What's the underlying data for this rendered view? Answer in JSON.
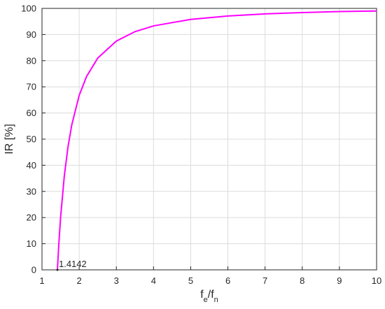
{
  "chart_data": {
    "type": "line",
    "ylabel": "IR [%]",
    "xlabel_parts": [
      "f",
      "e",
      "/f",
      "n"
    ],
    "x": [
      1.4142,
      1.45,
      1.5,
      1.6,
      1.7,
      1.8,
      2,
      2.2,
      2.5,
      3,
      3.5,
      4,
      5,
      6,
      7,
      8,
      9,
      10
    ],
    "series": [
      {
        "color": "#ff00ff",
        "values": [
          0,
          9.3,
          20,
          35.9,
          47.1,
          55.4,
          66.7,
          74.0,
          81.0,
          87.5,
          91.1,
          93.3,
          95.8,
          97.1,
          97.9,
          98.4,
          98.8,
          99.0
        ]
      }
    ],
    "annotation": {
      "x": 1.4142,
      "y": 0,
      "label": "1.4142"
    },
    "xlim": [
      1,
      10
    ],
    "xticks": [
      1,
      2,
      3,
      4,
      5,
      6,
      7,
      8,
      9,
      10
    ],
    "ylim": [
      0,
      100
    ],
    "yticks": [
      0,
      10,
      20,
      30,
      40,
      50,
      60,
      70,
      80,
      90,
      100
    ],
    "grid": true
  }
}
